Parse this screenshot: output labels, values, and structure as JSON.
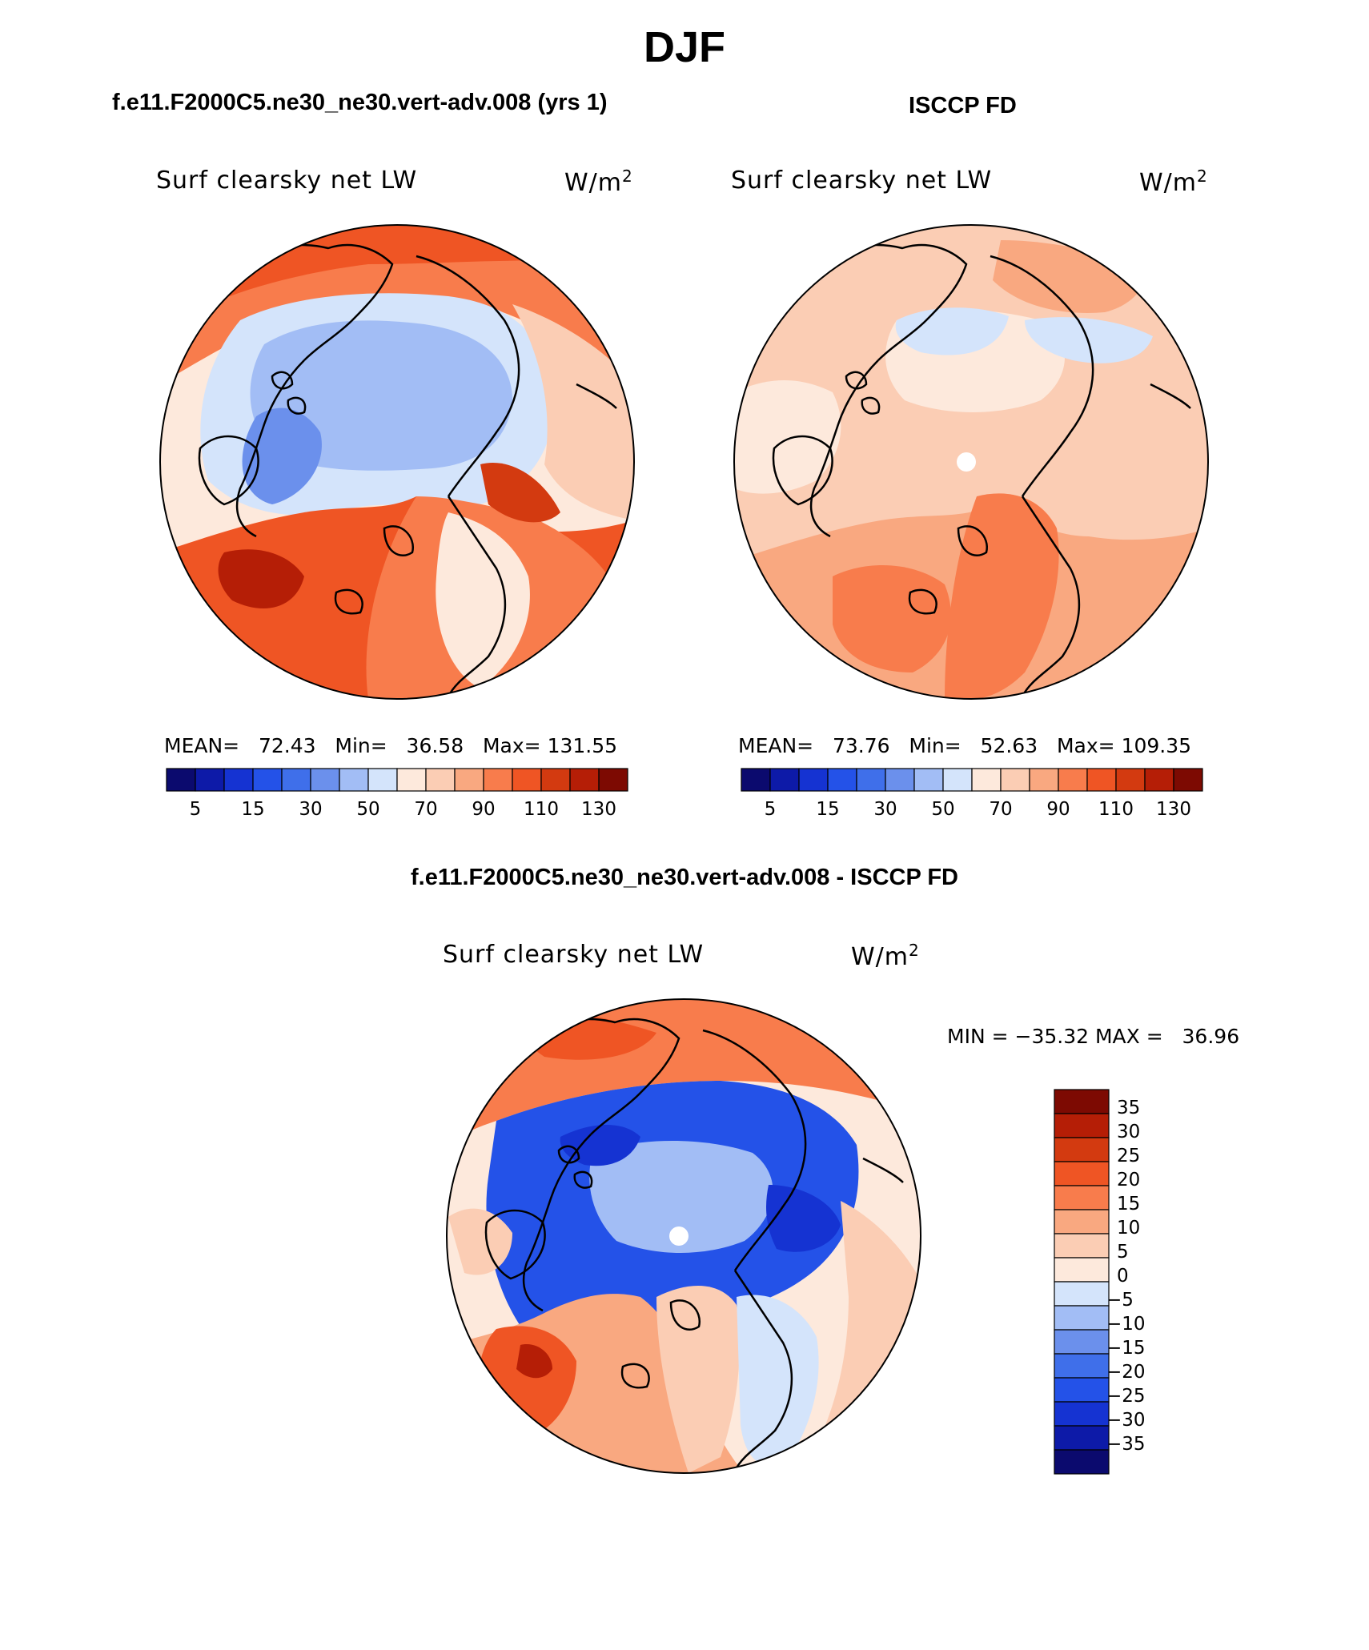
{
  "figure": {
    "season": "DJF",
    "diff_title": "f.e11.F2000C5.ne30_ne30.vert-adv.008 - ISCCP FD"
  },
  "panels": [
    {
      "id": "model",
      "case_title": "f.e11.F2000C5.ne30_ne30.vert-adv.008 (yrs 1)",
      "field": "Surf clearsky net LW",
      "units": "W/m",
      "units_exp": "2",
      "stats": {
        "mean_label": "MEAN=",
        "mean": "72.43",
        "min_label": "Min=",
        "min": "36.58",
        "max_label": "Max=",
        "max": "131.55"
      },
      "colorbar": {
        "colors": [
          "#0b0a6e",
          "#0d1aa8",
          "#1533d2",
          "#2452e8",
          "#3f6fea",
          "#6b90ec",
          "#a2bdf5",
          "#d4e4fb",
          "#fde9dc",
          "#fbcdb4",
          "#f9a880",
          "#f87c4c",
          "#ef5524",
          "#d33a10",
          "#b51e06",
          "#7d0a02"
        ],
        "labels": [
          "5",
          "15",
          "30",
          "50",
          "70",
          "90",
          "110",
          "130"
        ]
      }
    },
    {
      "id": "obs",
      "case_title": "ISCCP FD",
      "field": "Surf clearsky net LW",
      "units": "W/m",
      "units_exp": "2",
      "stats": {
        "mean_label": "MEAN=",
        "mean": "73.76",
        "min_label": "Min=",
        "min": "52.63",
        "max_label": "Max=",
        "max": "109.35"
      },
      "colorbar": {
        "colors": [
          "#0b0a6e",
          "#0d1aa8",
          "#1533d2",
          "#2452e8",
          "#3f6fea",
          "#6b90ec",
          "#a2bdf5",
          "#d4e4fb",
          "#fde9dc",
          "#fbcdb4",
          "#f9a880",
          "#f87c4c",
          "#ef5524",
          "#d33a10",
          "#b51e06",
          "#7d0a02"
        ],
        "labels": [
          "5",
          "15",
          "30",
          "50",
          "70",
          "90",
          "110",
          "130"
        ]
      }
    },
    {
      "id": "diff",
      "field": "Surf clearsky net LW",
      "units": "W/m",
      "units_exp": "2",
      "stats": {
        "min_label": "MIN =",
        "min": "−35.32",
        "max_label": "MAX =",
        "max": "36.96"
      },
      "colorbar": {
        "colors": [
          "#7d0a02",
          "#b51e06",
          "#d33a10",
          "#ef5524",
          "#f87c4c",
          "#f9a880",
          "#fbcdb4",
          "#fde9dc",
          "#d4e4fb",
          "#a2bdf5",
          "#6b90ec",
          "#3f6fea",
          "#2452e8",
          "#1533d2",
          "#0d1aa8",
          "#0b0a6e"
        ],
        "labels": [
          "35",
          "30",
          "25",
          "20",
          "15",
          "10",
          "5",
          "0",
          "−5",
          "−10",
          "−15",
          "−20",
          "−25",
          "−30",
          "−35"
        ]
      }
    }
  ]
}
